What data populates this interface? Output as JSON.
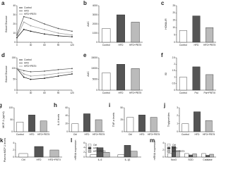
{
  "chart_data": [
    {
      "label": "a",
      "type": "line",
      "ylabel": "Blood Glucose",
      "x": [
        0,
        15,
        30,
        60,
        90,
        120
      ],
      "xlim": [
        0,
        120
      ],
      "xticks": [
        0,
        30,
        60,
        90,
        120
      ],
      "ylim": [
        0,
        40
      ],
      "yticks": [
        0,
        10,
        20,
        30,
        40
      ],
      "series": [
        {
          "name": "Control",
          "color": "#111111",
          "values": [
            5,
            14,
            12,
            9,
            7,
            6
          ]
        },
        {
          "name": "HFD",
          "color": "#555555",
          "values": [
            8,
            28,
            26,
            20,
            15,
            12
          ]
        },
        {
          "name": "HFD+PBTII",
          "color": "#999999",
          "values": [
            6,
            22,
            18,
            14,
            10,
            8
          ]
        }
      ]
    },
    {
      "label": "b",
      "type": "bar",
      "ylabel": "AUC",
      "categories": [
        "Control",
        "HFD",
        "HFD+PBTII"
      ],
      "values": [
        1500,
        3000,
        2200
      ],
      "colors": [
        "#ffffff",
        "#555555",
        "#bbbbbb"
      ],
      "ylim": [
        0,
        4000
      ],
      "yticks": [
        0,
        1000,
        2000,
        3000,
        4000
      ]
    },
    {
      "label": "c",
      "type": "bar",
      "ylabel": "HOMA-IR",
      "categories": [
        "Control",
        "HFD",
        "HFD+PBTII"
      ],
      "values": [
        8,
        18,
        10
      ],
      "colors": [
        "#ffffff",
        "#555555",
        "#bbbbbb"
      ],
      "ylim": [
        0,
        25
      ],
      "yticks": [
        0,
        5,
        10,
        15,
        20,
        25
      ]
    },
    {
      "label": "d",
      "type": "line",
      "ylabel": "Blood Glucose",
      "x": [
        0,
        15,
        30,
        60,
        90,
        120
      ],
      "xlim": [
        0,
        120
      ],
      "xticks": [
        0,
        30,
        60,
        90,
        120
      ],
      "ylim": [
        0,
        150
      ],
      "yticks": [
        0,
        50,
        100,
        150
      ],
      "series": [
        {
          "name": "Control",
          "color": "#111111",
          "values": [
            100,
            60,
            50,
            55,
            65,
            75
          ]
        },
        {
          "name": "HFD",
          "color": "#555555",
          "values": [
            100,
            90,
            85,
            88,
            95,
            100
          ]
        },
        {
          "name": "HFD+PBTII",
          "color": "#999999",
          "values": [
            100,
            75,
            65,
            70,
            78,
            85
          ]
        }
      ]
    },
    {
      "label": "e",
      "type": "bar",
      "ylabel": "AUC",
      "categories": [
        "Control",
        "HFD",
        "HFD+PBTII"
      ],
      "values": [
        8000,
        12000,
        10000
      ],
      "colors": [
        "#ffffff",
        "#555555",
        "#bbbbbb"
      ],
      "ylim": [
        0,
        15000
      ],
      "yticks": [
        0,
        5000,
        10000,
        15000
      ]
    },
    {
      "label": "f",
      "type": "bar",
      "ylabel": "ISI",
      "categories": [
        "Control",
        "Pal",
        "Pal+PBTIII"
      ],
      "values": [
        1.0,
        1.8,
        1.2
      ],
      "colors": [
        "#ffffff",
        "#555555",
        "#bbbbbb"
      ],
      "ylim": [
        0,
        2.5
      ],
      "yticks": [
        0,
        0.5,
        1,
        1.5,
        2,
        2.5
      ]
    },
    {
      "label": "g",
      "type": "bar",
      "ylabel": "MCP-1 (pg/ml)",
      "categories": [
        "Control",
        "HFD",
        "HFD+PBTII"
      ],
      "values": [
        40,
        70,
        45
      ],
      "colors": [
        "#ffffff",
        "#555555",
        "#bbbbbb"
      ],
      "ylim": [
        0,
        100
      ],
      "yticks": [
        0,
        50,
        100
      ]
    },
    {
      "label": "h",
      "type": "bar",
      "ylabel": "IL-6 levels",
      "categories": [
        "Ctrl",
        "HFD",
        "HFD+PBTII"
      ],
      "values": [
        20,
        45,
        30
      ],
      "colors": [
        "#ffffff",
        "#555555",
        "#bbbbbb"
      ],
      "ylim": [
        0,
        60
      ],
      "yticks": [
        0,
        20,
        40,
        60
      ]
    },
    {
      "label": "i",
      "type": "bar",
      "ylabel": "TNF-α levels",
      "categories": [
        "Ctrl",
        "HFD",
        "HFD+PBTII"
      ],
      "values": [
        30,
        35,
        30
      ],
      "colors": [
        "#ffffff",
        "#555555",
        "#bbbbbb"
      ],
      "ylim": [
        0,
        50
      ],
      "yticks": [
        0,
        25,
        50
      ]
    },
    {
      "label": "j",
      "type": "bar",
      "ylabel": "Triglycerides",
      "categories": [
        "Control",
        "HFD",
        "HFD+PBTII"
      ],
      "values": [
        1.0,
        2.5,
        1.4
      ],
      "colors": [
        "#ffffff",
        "#555555",
        "#bbbbbb"
      ],
      "ylim": [
        0,
        3
      ],
      "yticks": [
        0,
        1,
        2,
        3
      ]
    },
    {
      "label": "k",
      "type": "bar",
      "ylabel": "Plasma MCP-1 levels",
      "categories": [
        "Ctrl",
        "HFD",
        "HFD+PBTII"
      ],
      "values": [
        1,
        3,
        2
      ],
      "colors": [
        "#ffffff",
        "#555555",
        "#bbbbbb"
      ],
      "ylim": [
        0,
        4
      ],
      "yticks": [
        0,
        2,
        4
      ]
    },
    {
      "label": "l",
      "type": "bar",
      "ylabel": "mRNA expression",
      "categories": [
        "IL-6",
        "IL-1β"
      ],
      "ylim": [
        0,
        6
      ],
      "yticks": [
        0,
        2,
        4,
        6
      ],
      "series": [
        {
          "name": "Ctrl",
          "color": "#ffffff",
          "values": [
            1,
            1
          ]
        },
        {
          "name": "HFD",
          "color": "#555555",
          "values": [
            4,
            5
          ]
        },
        {
          "name": "HFD+PBTII",
          "color": "#bbbbbb",
          "values": [
            2,
            2.5
          ]
        }
      ]
    },
    {
      "label": "m",
      "type": "bar",
      "ylabel": "mRNA expression",
      "categories": [
        "Nox3",
        "SOD",
        "Catalase"
      ],
      "ylim": [
        0,
        4
      ],
      "yticks": [
        0,
        2,
        4
      ],
      "series": [
        {
          "name": "Ctrl",
          "color": "#ffffff",
          "values": [
            1,
            1,
            1
          ]
        },
        {
          "name": "HFD",
          "color": "#555555",
          "values": [
            3,
            0.6,
            0.5
          ]
        },
        {
          "name": "HFD+PBTII",
          "color": "#bbbbbb",
          "values": [
            1.8,
            0.9,
            0.8
          ]
        }
      ]
    }
  ]
}
